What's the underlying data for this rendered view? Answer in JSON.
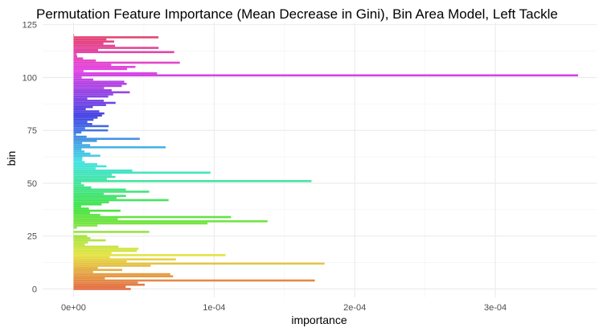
{
  "chart_data": {
    "type": "bar",
    "orientation": "horizontal",
    "title": "Permutation Feature Importance (Mean Decrease in Gini), Bin Area Model, Left Tackle",
    "xlabel": "importance",
    "ylabel": "bin",
    "xlim": [
      -2.2e-05,
      0.000372
    ],
    "ylim": [
      -4,
      126
    ],
    "x_ticks": [
      {
        "value": 0,
        "label": "0e+00"
      },
      {
        "value": 0.0001,
        "label": "1e-04"
      },
      {
        "value": 0.0002,
        "label": "2e-04"
      },
      {
        "value": 0.0003,
        "label": "3e-04"
      }
    ],
    "y_ticks": [
      {
        "value": 0,
        "label": "0"
      },
      {
        "value": 25,
        "label": "25"
      },
      {
        "value": 50,
        "label": "50"
      },
      {
        "value": 75,
        "label": "75"
      },
      {
        "value": 100,
        "label": "100"
      },
      {
        "value": 125,
        "label": "125"
      }
    ],
    "grid": true,
    "legend": "none",
    "color_scale": "hue by bin (rainbow)",
    "bins": [
      0,
      1,
      2,
      3,
      4,
      5,
      6,
      7,
      8,
      9,
      10,
      11,
      12,
      13,
      14,
      15,
      16,
      17,
      18,
      19,
      20,
      21,
      22,
      23,
      24,
      25,
      26,
      27,
      28,
      29,
      30,
      31,
      32,
      33,
      34,
      35,
      36,
      37,
      38,
      39,
      40,
      41,
      42,
      43,
      44,
      45,
      46,
      47,
      48,
      49,
      50,
      51,
      52,
      53,
      54,
      55,
      56,
      57,
      58,
      59,
      60,
      61,
      62,
      63,
      64,
      65,
      66,
      67,
      68,
      69,
      70,
      71,
      72,
      73,
      74,
      75,
      76,
      77,
      78,
      79,
      80,
      81,
      82,
      83,
      84,
      85,
      86,
      87,
      88,
      89,
      90,
      91,
      92,
      93,
      94,
      95,
      96,
      97,
      98,
      99,
      100,
      101,
      102,
      103,
      104,
      105,
      106,
      107,
      108,
      109,
      110,
      111,
      112,
      113,
      114,
      115,
      116,
      117,
      118,
      119,
      120
    ],
    "values": [
      4.07e-05,
      3.71e-05,
      5.06e-05,
      4.58e-05,
      0.0001716,
      2.23e-05,
      7.08e-05,
      6.88e-05,
      1.39e-05,
      3.46e-05,
      1.73e-05,
      5.49e-05,
      0.0001785,
      3.78e-05,
      7.28e-05,
      2.58e-05,
      0.0001081,
      2.7e-05,
      4.5e-05,
      4.62e-05,
      3.19e-05,
      8e-06,
      1.03e-05,
      2.29e-05,
      1.2e-05,
      9.7e-06,
      0.0,
      5.38e-05,
      0.0,
      2.4e-06,
      1.7e-05,
      9.53e-05,
      0.000138,
      3.15e-05,
      0.000112,
      1.9e-05,
      1.17e-05,
      3.34e-05,
      1.09e-05,
      5.4e-06,
      2e-05,
      2.52e-05,
      6.76e-05,
      3.06e-05,
      3.73e-05,
      2.15e-05,
      5.38e-05,
      3.72e-05,
      1.26e-05,
      7.5e-06,
      5.4e-06,
      0.0001692,
      2.37e-05,
      2.98e-05,
      2.72e-05,
      9.74e-05,
      4.18e-05,
      1.57e-05,
      2.34e-05,
      1.69e-05,
      8e-06,
      6.1e-06,
      6.3e-06,
      1.9e-05,
      1.2e-05,
      7.8e-06,
      5.7e-06,
      6.55e-05,
      1.18e-05,
      6.1e-06,
      1.66e-05,
      4.71e-05,
      9.3e-06,
      1.8e-06,
      5.6e-06,
      2.45e-05,
      8.2e-06,
      2.5e-05,
      1.33e-05,
      9.8e-06,
      1.42e-05,
      1.71e-05,
      2.02e-05,
      2.19e-05,
      1.83e-05,
      8.7e-06,
      1.37e-05,
      2.31e-05,
      2.99e-05,
      2.15e-05,
      9.8e-06,
      2.47e-05,
      2.82e-05,
      4e-05,
      2.71e-05,
      2.17e-05,
      3.43e-05,
      3.78e-05,
      3.61e-05,
      1.4e-05,
      5.8e-06,
      0.0003589,
      5.94e-05,
      7.1e-06,
      3.8e-05,
      4.4e-05,
      2.68e-05,
      7.56e-05,
      1.59e-05,
      6.8e-06,
      2.6e-06,
      2.2e-06,
      7.16e-05,
      1.75e-05,
      6.05e-05,
      2.95e-05,
      2.13e-05,
      2.89e-05,
      2.34e-05,
      6.04e-05,
      4e-07
    ]
  }
}
